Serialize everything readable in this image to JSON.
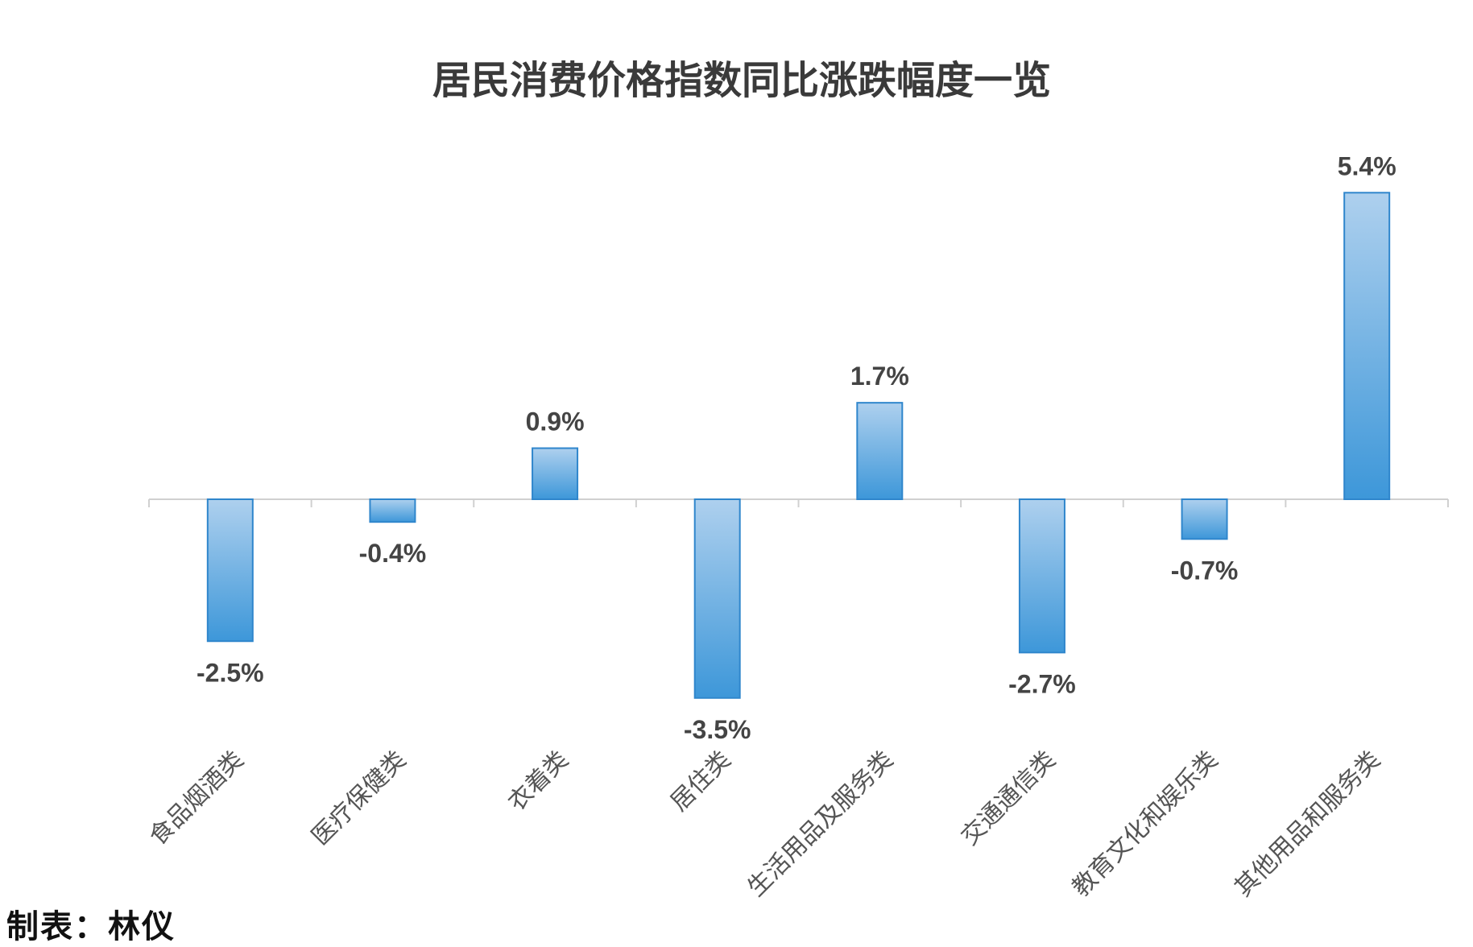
{
  "chart_data": {
    "type": "bar",
    "title": "居民消费价格指数同比涨跌幅度一览",
    "categories": [
      "食品烟酒类",
      "医疗保健类",
      "衣着类",
      "居住类",
      "生活用品及服务类",
      "交通通信类",
      "教育文化和娱乐类",
      "其他用品和服务类"
    ],
    "values": [
      -2.5,
      -0.4,
      0.9,
      -3.5,
      1.7,
      -2.7,
      -0.7,
      5.4
    ],
    "labels": [
      "-2.5%",
      "-0.4%",
      "0.9%",
      "-3.5%",
      "1.7%",
      "-2.7%",
      "-0.7%",
      "5.4%"
    ],
    "unit": "%",
    "xlabel": "",
    "ylabel": "",
    "ylim": [
      -4.5,
      6
    ],
    "grid": false,
    "legend": "none",
    "bar_color_top": "#aed0ee",
    "bar_color_bottom": "#3d97d9",
    "bar_edge_color": "#2f86cc"
  },
  "footer": {
    "credit": "制表：林仪"
  }
}
